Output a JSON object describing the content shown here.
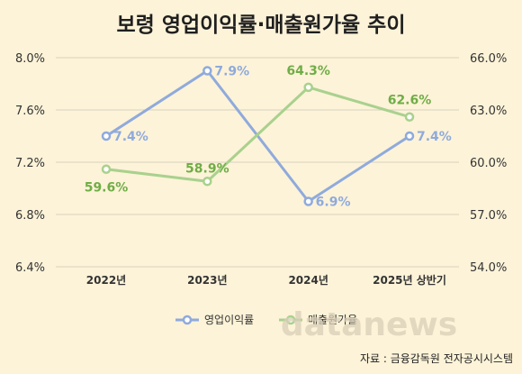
{
  "chart_data": {
    "type": "line",
    "title": "보령 영업이익률·매출원가율 추이",
    "categories": [
      "2022년",
      "2023년",
      "2024년",
      "2025년 상반기"
    ],
    "y_left": {
      "ticks": [
        "6.4%",
        "6.8%",
        "7.2%",
        "7.6%",
        "8.0%"
      ],
      "ylim": [
        6.4,
        8.0
      ]
    },
    "y_right": {
      "ticks": [
        "54.0%",
        "57.0%",
        "60.0%",
        "63.0%",
        "66.0%"
      ],
      "ylim": [
        54.0,
        66.0
      ]
    },
    "series": [
      {
        "name": "영업이익률",
        "axis": "left",
        "color": "#8faadc",
        "values": [
          7.4,
          7.9,
          6.9,
          7.4
        ],
        "labels": [
          "7.4%",
          "7.9%",
          "6.9%",
          "7.4%"
        ]
      },
      {
        "name": "매출원가율",
        "axis": "right",
        "color": "#a9d18e",
        "label_color": "#70ad47",
        "values": [
          59.6,
          58.9,
          64.3,
          62.6
        ],
        "labels": [
          "59.6%",
          "58.9%",
          "64.3%",
          "62.6%"
        ]
      }
    ],
    "grid": true,
    "legend_position": "bottom"
  },
  "watermark": "datanews",
  "source": "자료 : 금융감독원 전자공시시스템"
}
